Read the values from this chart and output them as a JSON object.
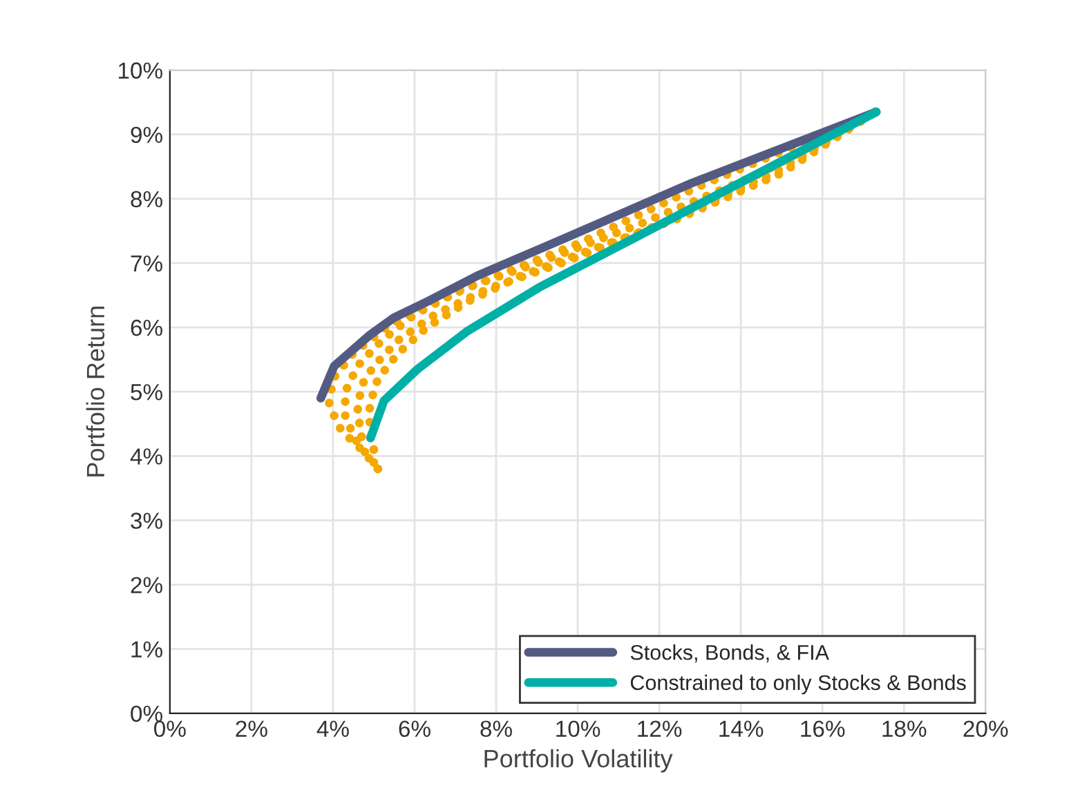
{
  "chart_data": {
    "type": "line",
    "xlabel": "Portfolio Volatility",
    "ylabel": "Portfolio Return",
    "xlim": [
      0,
      20
    ],
    "ylim": [
      0,
      10
    ],
    "xticks": [
      {
        "value": 0,
        "label": "0%"
      },
      {
        "value": 2,
        "label": "2%"
      },
      {
        "value": 4,
        "label": "4%"
      },
      {
        "value": 6,
        "label": "6%"
      },
      {
        "value": 8,
        "label": "8%"
      },
      {
        "value": 10,
        "label": "10%"
      },
      {
        "value": 12,
        "label": "12%"
      },
      {
        "value": 14,
        "label": "14%"
      },
      {
        "value": 16,
        "label": "16%"
      },
      {
        "value": 18,
        "label": "18%"
      },
      {
        "value": 20,
        "label": "20%"
      }
    ],
    "yticks": [
      {
        "value": 0,
        "label": "0%"
      },
      {
        "value": 1,
        "label": "1%"
      },
      {
        "value": 2,
        "label": "2%"
      },
      {
        "value": 3,
        "label": "3%"
      },
      {
        "value": 4,
        "label": "4%"
      },
      {
        "value": 5,
        "label": "5%"
      },
      {
        "value": 6,
        "label": "6%"
      },
      {
        "value": 7,
        "label": "7%"
      },
      {
        "value": 8,
        "label": "8%"
      },
      {
        "value": 9,
        "label": "9%"
      },
      {
        "value": 10,
        "label": "10%"
      }
    ],
    "grid": true,
    "legend": "bottom right",
    "marker": "none",
    "series": [
      {
        "color": "#f5a800",
        "line_style": "dotted",
        "x": [
          5.1,
          4.7,
          4.2,
          3.9,
          4.0,
          4.5,
          5.3,
          6.5,
          8.0,
          10.0,
          13.0,
          17.3
        ],
        "values": [
          3.8,
          4.1,
          4.4,
          4.8,
          5.2,
          5.6,
          6.0,
          6.4,
          6.8,
          7.3,
          8.2,
          9.35
        ]
      },
      {
        "color": "#f5a800",
        "line_style": "dotted",
        "x": [
          5.0,
          4.6,
          4.3,
          4.3,
          4.6,
          5.2,
          6.0,
          7.2,
          9.0,
          11.5,
          14.5,
          17.3
        ],
        "values": [
          3.9,
          4.2,
          4.6,
          5.0,
          5.4,
          5.8,
          6.2,
          6.6,
          7.0,
          7.6,
          8.4,
          9.35
        ]
      },
      {
        "color": "#f5a800",
        "line_style": "dotted",
        "x": [
          4.7,
          4.6,
          4.7,
          5.0,
          5.6,
          6.5,
          7.8,
          9.6,
          12.0,
          14.8,
          17.3
        ],
        "values": [
          4.3,
          4.7,
          5.1,
          5.4,
          5.8,
          6.2,
          6.6,
          7.0,
          7.6,
          8.4,
          9.35
        ]
      },
      {
        "color": "#f5a800",
        "line_style": "dotted",
        "x": [
          5.0,
          4.9,
          4.9,
          5.1,
          5.6,
          6.3,
          7.3,
          8.6,
          10.3,
          12.5,
          15.0,
          17.3
        ],
        "values": [
          4.1,
          4.4,
          4.8,
          5.2,
          5.6,
          6.0,
          6.4,
          6.8,
          7.2,
          7.7,
          8.4,
          9.35
        ]
      },
      {
        "name": "Stocks, Bonds, & FIA",
        "color": "#535b82",
        "line_style": "solid",
        "x": [
          3.7,
          4.03,
          4.88,
          5.49,
          6.34,
          7.53,
          9.73,
          12.78,
          17.32
        ],
        "values": [
          4.9,
          5.4,
          5.87,
          6.15,
          6.41,
          6.8,
          7.4,
          8.24,
          9.35
        ]
      },
      {
        "name": "Constrained to only Stocks & Bonds",
        "color": "#00b0a6",
        "line_style": "solid",
        "x": [
          4.92,
          5.25,
          6.07,
          7.29,
          9.05,
          11.42,
          14.14,
          17.32
        ],
        "values": [
          4.28,
          4.86,
          5.35,
          5.94,
          6.62,
          7.4,
          8.3,
          9.35
        ]
      }
    ]
  }
}
